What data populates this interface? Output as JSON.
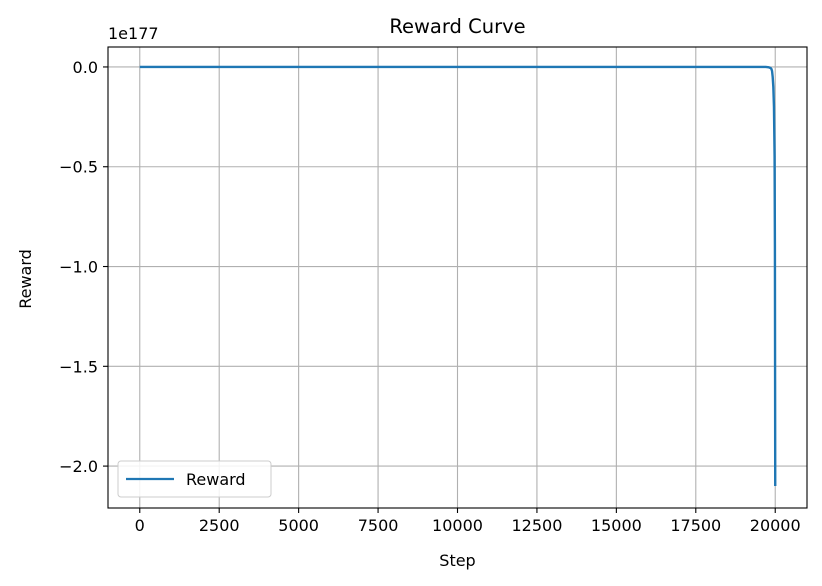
{
  "chart_data": {
    "type": "line",
    "title": "Reward Curve",
    "xlabel": "Step",
    "ylabel": "Reward",
    "y_offset_text": "1e177",
    "xlim": [
      -1000,
      21000
    ],
    "ylim": [
      -2.21,
      0.1
    ],
    "x_ticks": [
      0,
      2500,
      5000,
      7500,
      10000,
      12500,
      15000,
      17500,
      20000
    ],
    "x_tick_labels": [
      "0",
      "2500",
      "5000",
      "7500",
      "10000",
      "12500",
      "15000",
      "17500",
      "20000"
    ],
    "y_ticks": [
      0.0,
      -0.5,
      -1.0,
      -1.5,
      -2.0
    ],
    "y_tick_labels": [
      "0.0",
      "−0.5",
      "−1.0",
      "−1.5",
      "−2.0"
    ],
    "grid": true,
    "legend_position": "lower-left",
    "series": [
      {
        "name": "Reward",
        "color": "#1f77b4",
        "x": [
          0,
          5000,
          10000,
          15000,
          19000,
          19500,
          19700,
          19800,
          19850,
          19880,
          19900,
          19920,
          19940,
          19960,
          19980,
          19990,
          20000
        ],
        "y": [
          0.0,
          0.0,
          0.0,
          0.0,
          0.0,
          0.0,
          0.0,
          -0.002,
          -0.005,
          -0.01,
          -0.02,
          -0.05,
          -0.1,
          -0.2,
          -0.45,
          -0.9,
          -2.1
        ]
      }
    ]
  }
}
